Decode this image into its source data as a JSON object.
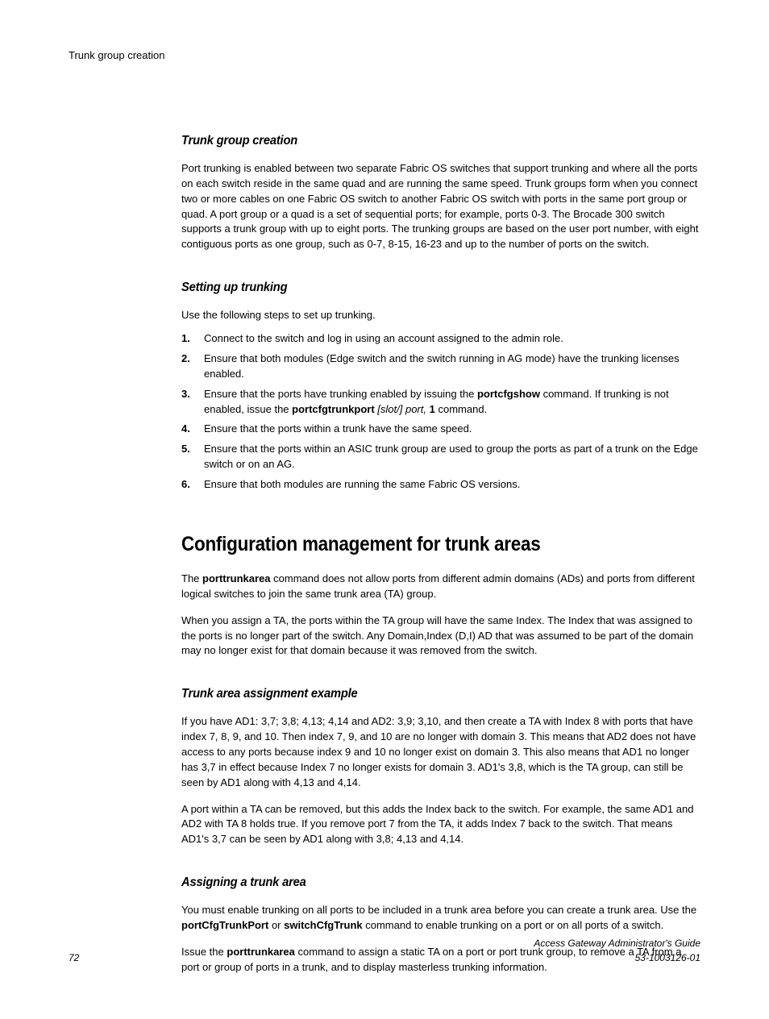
{
  "running_head": "Trunk group creation",
  "sections": {
    "trunk_group_creation": {
      "title": "Trunk group creation",
      "para": "Port trunking is enabled between two separate Fabric OS switches that support trunking and where all the ports on each switch reside in the same quad and are running the same speed. Trunk groups form when you connect two or more cables on one Fabric OS switch to another Fabric OS switch with ports in the same port group or quad. A port group or a quad is a set of sequential ports; for example, ports 0-3. The Brocade 300 switch supports a trunk group with up to eight ports. The trunking groups are based on the user port number, with eight contiguous ports as one group, such as 0-7, 8-15, 16-23 and up to the number of ports on the switch."
    },
    "setting_up_trunking": {
      "title": "Setting up trunking",
      "intro": "Use the following steps to set up trunking.",
      "steps": {
        "s1": "Connect to the switch and log in using an account assigned to the admin role.",
        "s2": "Ensure that both modules (Edge switch and the switch running in AG mode) have the trunking licenses enabled.",
        "s3_a": "Ensure that the ports have trunking enabled by issuing the ",
        "s3_cmd1": "portcfgshow",
        "s3_b": " command. If trunking is not enabled, issue the ",
        "s3_cmd2": "portcfgtrunkport",
        "s3_arg": " [slot/] port,",
        "s3_c": " ",
        "s3_val": "1",
        "s3_d": " command.",
        "s4": "Ensure that the ports within a trunk have the same speed.",
        "s5": "Ensure that the ports within an ASIC trunk group are used to group the ports as part of a trunk on the Edge switch or on an AG.",
        "s6": "Ensure that both modules are running the same Fabric OS versions."
      }
    },
    "config_mgmt": {
      "title": "Configuration management for trunk areas",
      "p1_a": "The ",
      "p1_cmd": "porttrunkarea",
      "p1_b": " command does not allow ports from different admin domains (ADs) and ports from different logical switches to join the same trunk area (TA) group.",
      "p2": "When you assign a TA, the ports within the TA group will have the same Index. The Index that was assigned to the ports is no longer part of the switch. Any Domain,Index (D,I) AD that was assumed to be part of the domain may no longer exist for that domain because it was removed from the switch."
    },
    "trunk_area_example": {
      "title": "Trunk area assignment example",
      "p1": "If you have AD1: 3,7; 3,8; 4,13; 4,14 and AD2: 3,9; 3,10, and then create a TA with Index 8 with ports that have index 7, 8, 9, and 10. Then index 7, 9, and 10 are no longer with domain 3. This means that AD2 does not have access to any ports because index 9 and 10 no longer exist on domain 3. This also means that AD1 no longer has 3,7 in effect because Index 7 no longer exists for domain 3. AD1's 3,8, which is the TA group, can still be seen by AD1 along with 4,13 and 4,14.",
      "p2": "A port within a TA can be removed, but this adds the Index back to the switch. For example, the same AD1 and AD2 with TA 8 holds true. If you remove port 7 from the TA, it adds Index 7 back to the switch. That means AD1's 3,7 can be seen by AD1 along with 3,8; 4,13 and 4,14."
    },
    "assigning_trunk_area": {
      "title": "Assigning a trunk area",
      "p1_a": "You must enable trunking on all ports to be included in a trunk area before you can create a trunk area. Use the ",
      "p1_cmd1": "portCfgTrunkPort",
      "p1_b": " or ",
      "p1_cmd2": "switchCfgTrunk",
      "p1_c": " command to enable trunking on a port or on all ports of a switch.",
      "p2_a": "Issue the ",
      "p2_cmd": "porttrunkarea",
      "p2_b": " command to assign a static TA on a port or port trunk group, to remove a TA from a port or group of ports in a trunk, and to display masterless trunking information."
    }
  },
  "footer": {
    "page_number": "72",
    "doc_title": "Access Gateway Administrator's Guide",
    "doc_number": "53-1003126-01"
  }
}
